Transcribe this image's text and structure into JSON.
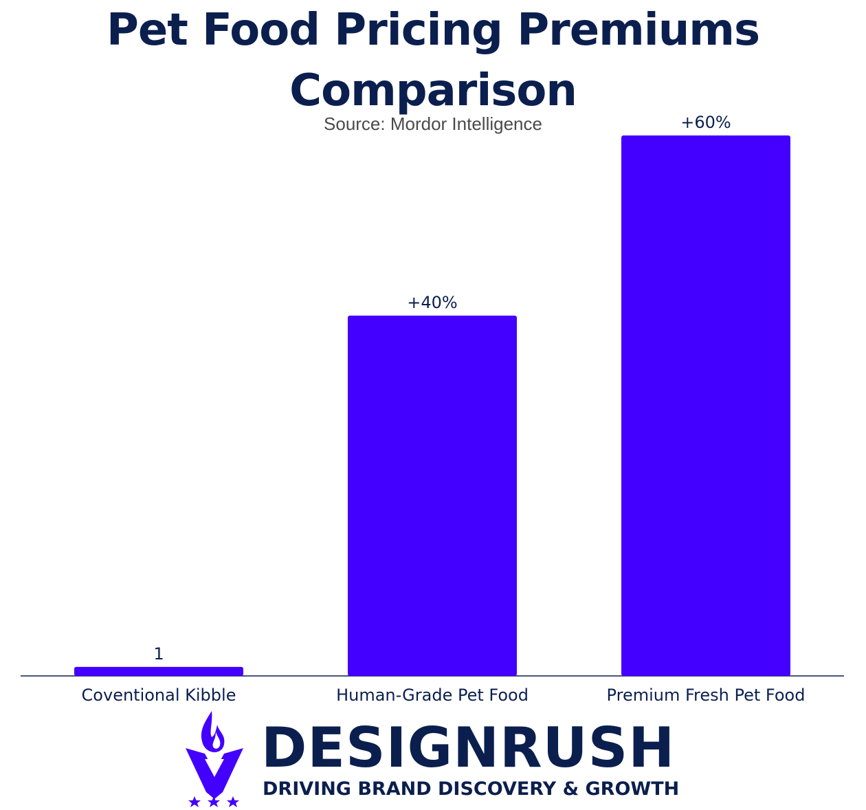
{
  "chart_data": {
    "type": "bar",
    "title": "Pet Food Pricing Premiums Comparison",
    "subtitle": "Source: Mordor Intelligence",
    "categories": [
      "Coventional Kibble",
      "Human-Grade Pet Food",
      "Premium Fresh Pet Food"
    ],
    "values": [
      1,
      40,
      60
    ],
    "data_labels": [
      "1",
      "+40%",
      "+60%"
    ],
    "xlabel": "",
    "ylabel": "",
    "ylim": [
      0,
      60
    ],
    "grid": false,
    "legend": "none",
    "bar_color": "#4400ff",
    "label_color": "#0b1f4e",
    "axis_color": "#0b1f4e"
  },
  "logo": {
    "wordmark": "DESIGNRUSH",
    "tagline": "DRIVING BRAND DISCOVERY & GROWTH",
    "brand_color": "#4400ff",
    "text_color": "#0b1f4e",
    "icon": "flame-shield-icon"
  }
}
